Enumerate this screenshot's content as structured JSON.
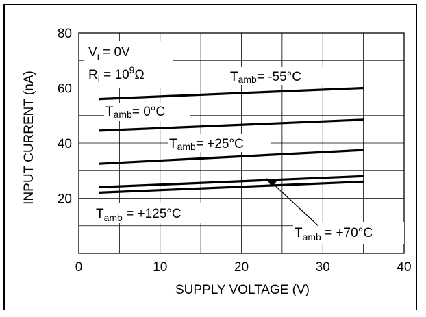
{
  "chart_data": {
    "type": "line",
    "title": "",
    "xlabel": "SUPPLY VOLTAGE (V)",
    "ylabel": "INPUT CURRENT (nA)",
    "xlim": [
      0,
      40
    ],
    "ylim": [
      0,
      80
    ],
    "x_ticks": [
      "0",
      "10",
      "20",
      "30",
      "40"
    ],
    "y_ticks": [
      "20",
      "40",
      "60",
      "80"
    ],
    "grid": true,
    "conditions": {
      "vi": "V",
      "vi_sub": "i",
      "vi_value": " = 0V",
      "ri": "R",
      "ri_sub": "i",
      "ri_value": " = 10",
      "ri_exp": "9",
      "ri_unit": "Ω"
    },
    "series": [
      {
        "label_main": "T",
        "label_sub": "amb",
        "label_value": "= -55°C",
        "x": [
          2.5,
          35
        ],
        "y": [
          56,
          60
        ]
      },
      {
        "label_main": "T",
        "label_sub": "amb",
        "label_value": "= 0°C",
        "x": [
          2.5,
          35
        ],
        "y": [
          44.5,
          48.5
        ]
      },
      {
        "label_main": "T",
        "label_sub": "amb",
        "label_value": "= +25°C",
        "x": [
          2.5,
          35
        ],
        "y": [
          32.5,
          37.5
        ]
      },
      {
        "label_main": "T",
        "label_sub": "amb",
        "label_value": " = +70°C",
        "x": [
          2.5,
          35
        ],
        "y": [
          24,
          28
        ]
      },
      {
        "label_main": "T",
        "label_sub": "amb",
        "label_value": " = +125°C",
        "x": [
          2.5,
          35
        ],
        "y": [
          22,
          26
        ]
      }
    ]
  }
}
